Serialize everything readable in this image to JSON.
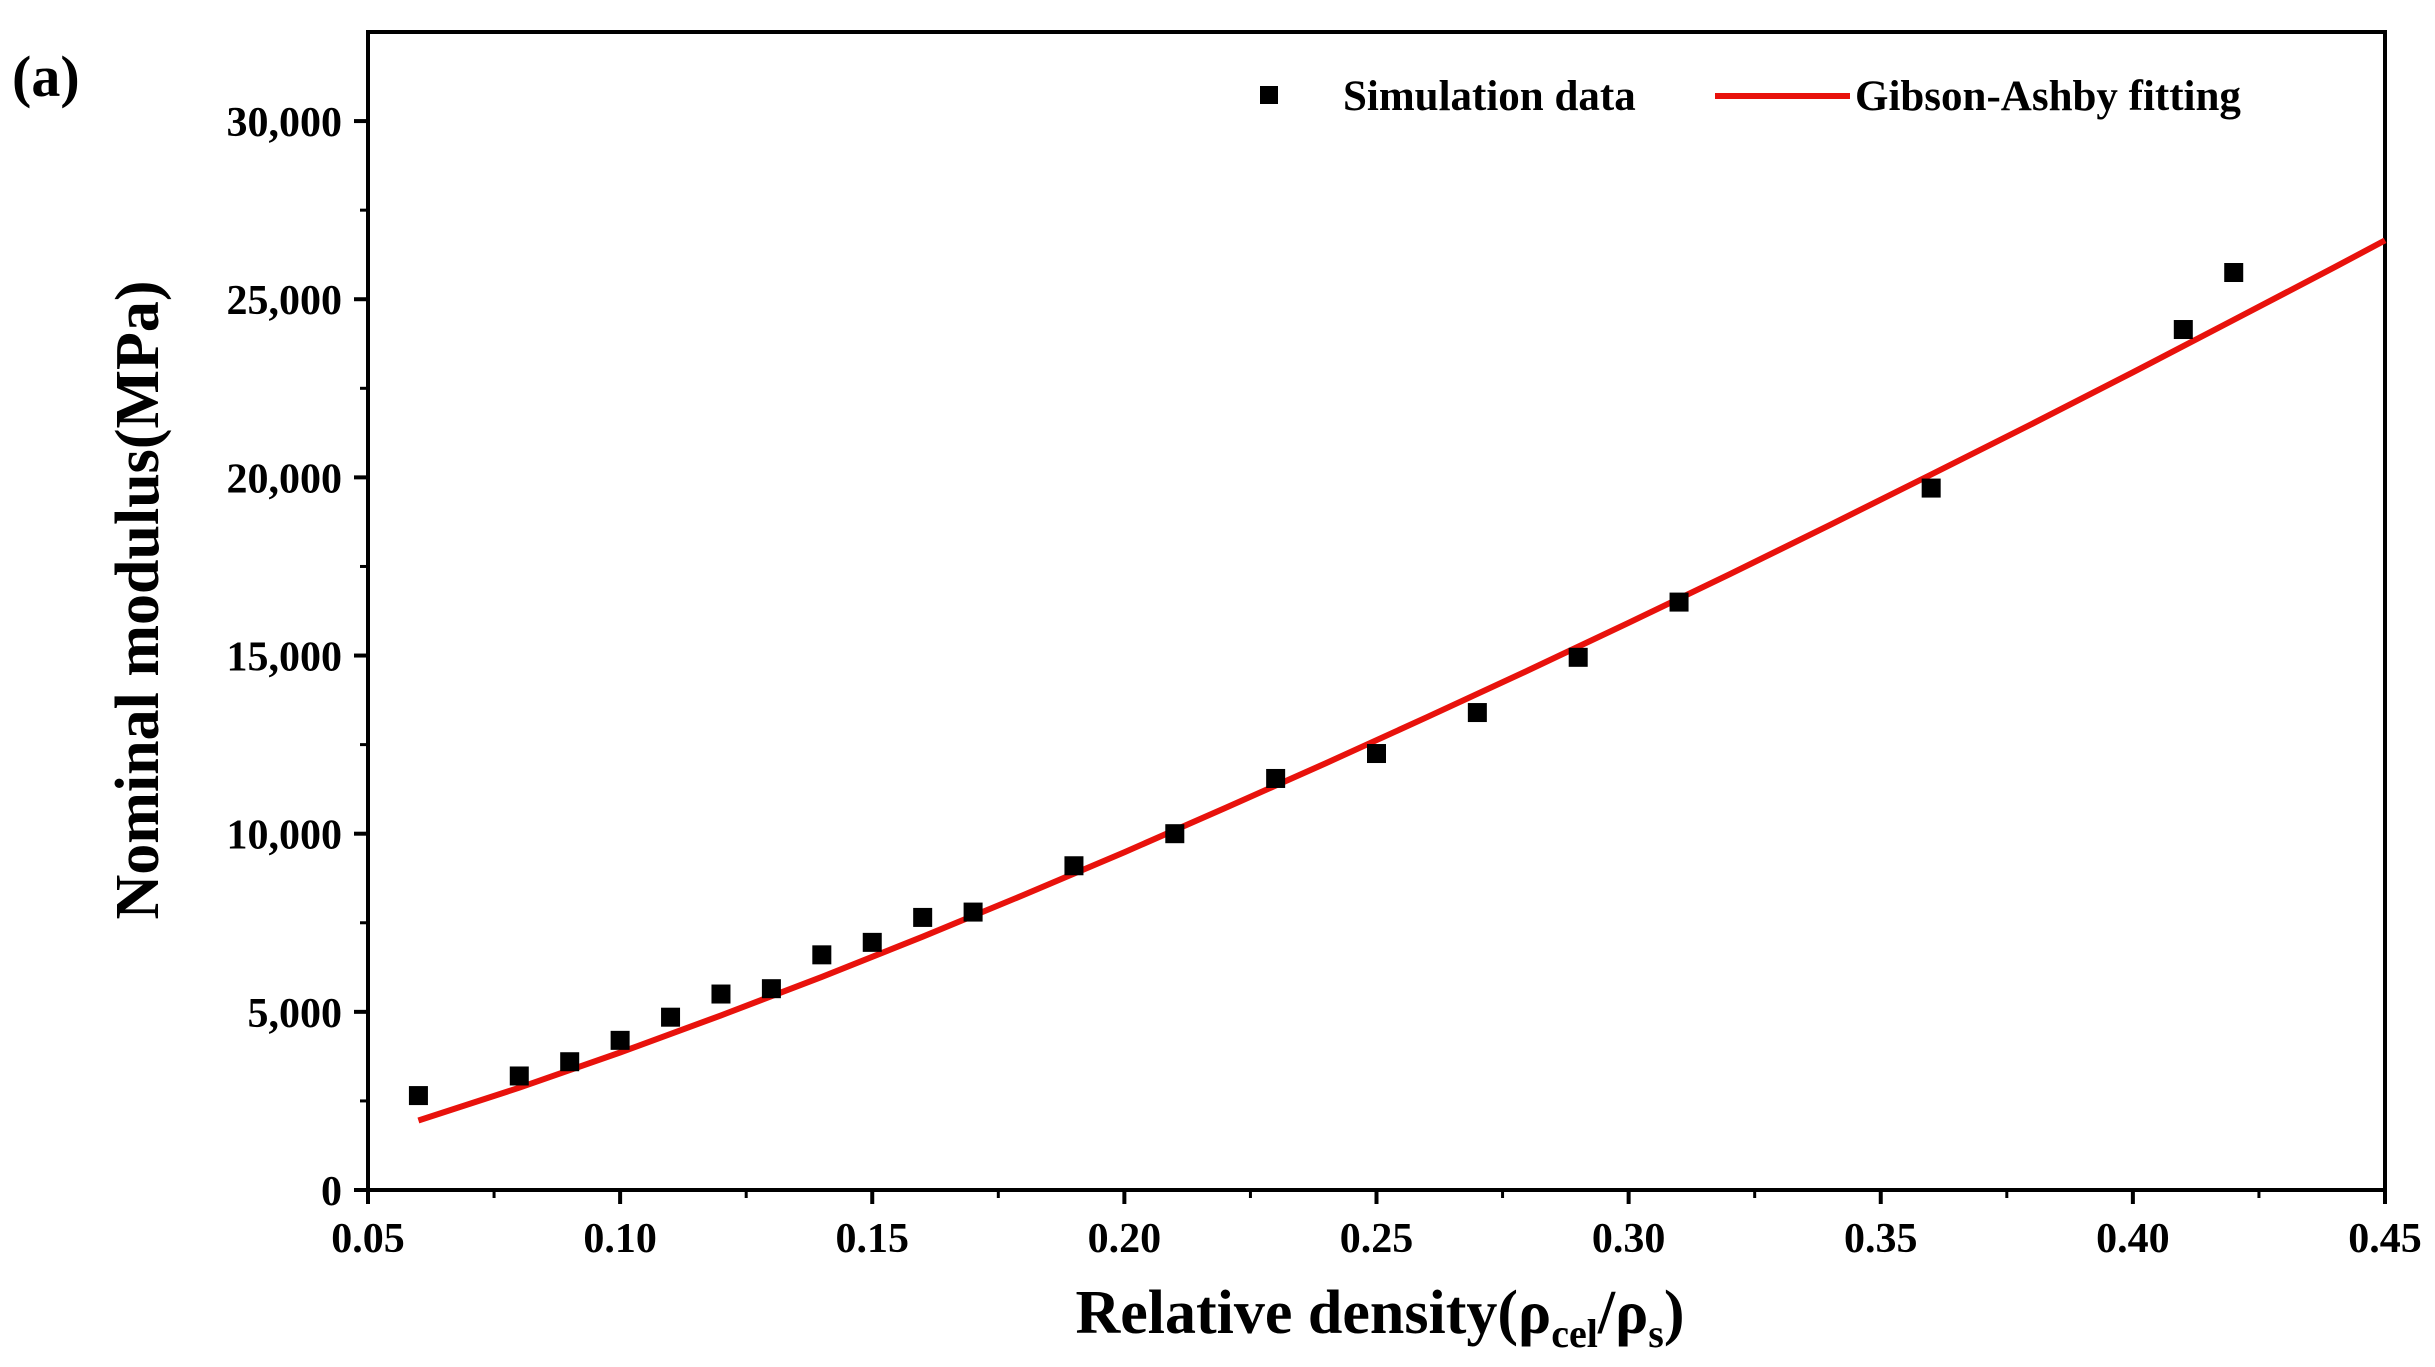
{
  "panel_label": "(a)",
  "colors": {
    "axis": "#000000",
    "fit_line": "#e8120c",
    "marker": "#000000",
    "background": "#ffffff"
  },
  "chart_data": {
    "type": "scatter",
    "title": "",
    "xlabel": "Relative density(ρcel/ρs)",
    "xlabel_parts": {
      "main": "Relative density(ρ",
      "sub1": "cel",
      "mid": "/ρ",
      "sub2": "s",
      "end": ")"
    },
    "ylabel": "Nominal modulus(MPa)",
    "xlim": [
      0.05,
      0.45
    ],
    "ylim": [
      0,
      32500
    ],
    "xticks": [
      0.05,
      0.1,
      0.15,
      0.2,
      0.25,
      0.3,
      0.35,
      0.4,
      0.45
    ],
    "xtick_labels": [
      "0.05",
      "0.10",
      "0.15",
      "0.20",
      "0.25",
      "0.30",
      "0.35",
      "0.40",
      "0.45"
    ],
    "yticks": [
      0,
      5000,
      10000,
      15000,
      20000,
      25000,
      30000
    ],
    "ytick_labels": [
      "0",
      "5,000",
      "10,000",
      "15,000",
      "20,000",
      "25,000",
      "30,000"
    ],
    "grid": false,
    "legend_position": "top-right",
    "series": [
      {
        "name": "Simulation data",
        "kind": "scatter",
        "marker": "square",
        "x": [
          0.06,
          0.08,
          0.09,
          0.1,
          0.11,
          0.12,
          0.13,
          0.14,
          0.15,
          0.16,
          0.17,
          0.19,
          0.21,
          0.23,
          0.25,
          0.27,
          0.29,
          0.31,
          0.36,
          0.41,
          0.42
        ],
        "y": [
          2650,
          3200,
          3600,
          4200,
          4850,
          5500,
          5650,
          6600,
          6950,
          7650,
          7800,
          9100,
          10000,
          11550,
          12250,
          13400,
          14950,
          16500,
          19700,
          24150,
          25750
        ]
      },
      {
        "name": "Gibson-Ashby fitting",
        "kind": "line",
        "x": [
          0.06,
          0.08,
          0.1,
          0.12,
          0.14,
          0.16,
          0.18,
          0.2,
          0.22,
          0.24,
          0.26,
          0.28,
          0.3,
          0.32,
          0.34,
          0.36,
          0.38,
          0.4,
          0.42,
          0.44,
          0.45
        ],
        "y": [
          1950,
          2870,
          3860,
          4900,
          5980,
          7110,
          8280,
          9480,
          10720,
          11980,
          13270,
          14580,
          15920,
          17280,
          18670,
          20080,
          21500,
          22950,
          24420,
          25900,
          26650
        ]
      }
    ]
  }
}
